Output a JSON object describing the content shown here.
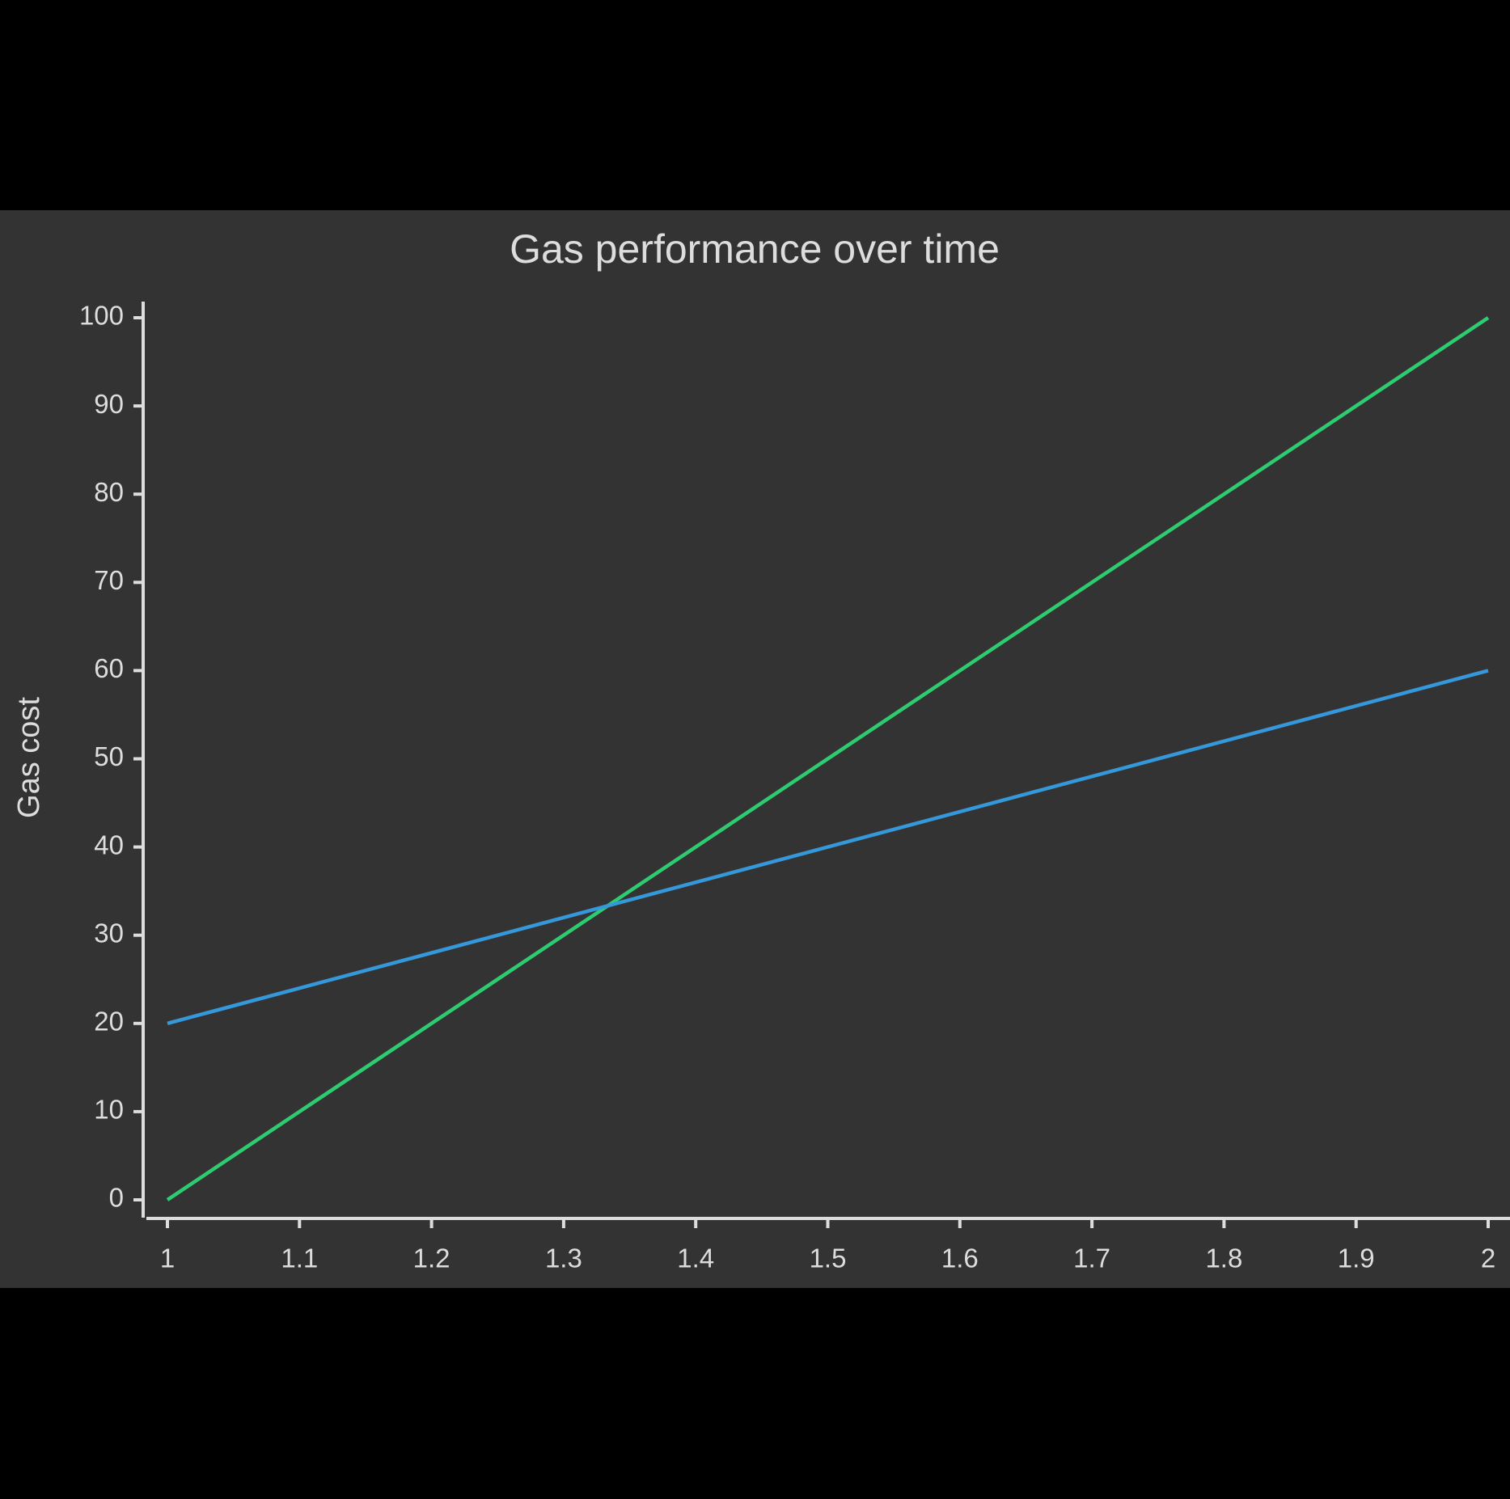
{
  "chart_data": {
    "type": "line",
    "title": "Gas performance over time",
    "y_label": "Gas cost",
    "x": [
      1,
      2
    ],
    "series": [
      {
        "color": "#2ecc71",
        "values": [
          0,
          100
        ]
      },
      {
        "color": "#3498db",
        "values": [
          20,
          60
        ]
      }
    ],
    "xlim": [
      1,
      2
    ],
    "xticks": [
      1,
      1.1,
      1.2,
      1.3,
      1.4,
      1.5,
      1.6,
      1.7,
      1.8,
      1.9,
      2
    ],
    "ylim": [
      0,
      100
    ],
    "yticks": [
      0,
      10,
      20,
      30,
      40,
      50,
      60,
      70,
      80,
      90,
      100
    ],
    "grid": false
  }
}
